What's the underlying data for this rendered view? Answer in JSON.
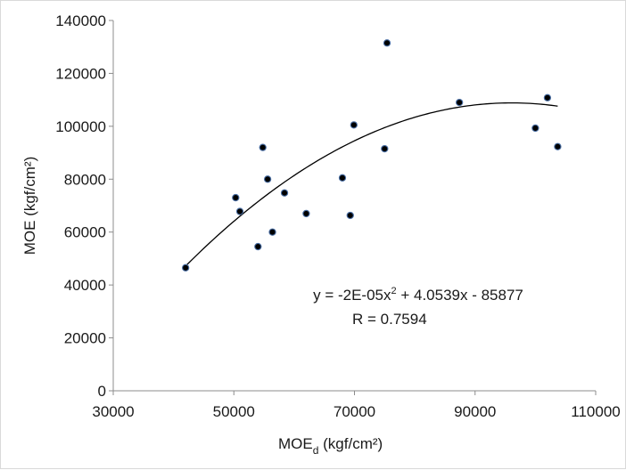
{
  "chart_data": {
    "type": "scatter",
    "title": "",
    "xlabel_main": "MOE",
    "xlabel_sub": "d",
    "xlabel_unit": " (kgf/cm²)",
    "ylabel": "MOE (kgf/cm²)",
    "xlim": [
      30000,
      110000
    ],
    "ylim": [
      0,
      140000
    ],
    "x_ticks": [
      30000,
      50000,
      70000,
      90000,
      110000
    ],
    "x_tick_labels": [
      "30000",
      "50000",
      "70000",
      "90000",
      "110000"
    ],
    "y_ticks": [
      0,
      20000,
      40000,
      60000,
      80000,
      100000,
      120000,
      140000
    ],
    "y_tick_labels": [
      "0",
      "20000",
      "40000",
      "60000",
      "80000",
      "100000",
      "120000",
      "140000"
    ],
    "grid": false,
    "legend": "none",
    "marker_color": "#000000",
    "marker_edge": "#4a6fa5",
    "points": [
      {
        "x": 42000,
        "y": 46500
      },
      {
        "x": 50300,
        "y": 73000
      },
      {
        "x": 51000,
        "y": 67800
      },
      {
        "x": 54000,
        "y": 54500
      },
      {
        "x": 54800,
        "y": 92000
      },
      {
        "x": 55600,
        "y": 80000
      },
      {
        "x": 56400,
        "y": 60000
      },
      {
        "x": 58400,
        "y": 74800
      },
      {
        "x": 62000,
        "y": 67000
      },
      {
        "x": 68000,
        "y": 80500
      },
      {
        "x": 69300,
        "y": 66300
      },
      {
        "x": 69900,
        "y": 100500
      },
      {
        "x": 75000,
        "y": 91500
      },
      {
        "x": 75400,
        "y": 131500
      },
      {
        "x": 87400,
        "y": 109000
      },
      {
        "x": 100000,
        "y": 99300
      },
      {
        "x": 102000,
        "y": 110800
      },
      {
        "x": 103700,
        "y": 92300
      }
    ],
    "trendline": {
      "type": "polynomial",
      "coefficients": {
        "a": -2.11e-05,
        "b": 4.0539,
        "c": -85877
      },
      "x_range": [
        42000,
        103700
      ],
      "equation_prefix": "y = -2E-05x",
      "equation_exp": "2",
      "equation_suffix": " + 4.0539x - 85877",
      "r_text": "R = 0.7594"
    }
  }
}
